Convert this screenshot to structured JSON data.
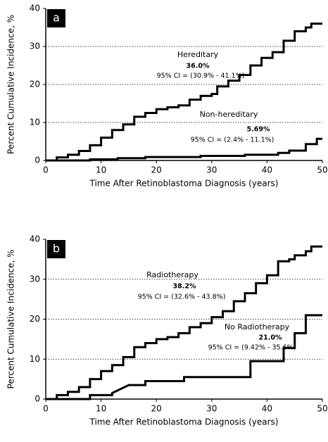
{
  "chart_data": [
    {
      "type": "line",
      "panel": "a",
      "xlabel": "Time After Retinoblastoma Diagnosis (years)",
      "ylabel": "Percent Cumulative Incidence, %",
      "xlim": [
        0,
        50
      ],
      "ylim": [
        0,
        40
      ],
      "xticks": [
        0,
        10,
        20,
        30,
        40,
        50
      ],
      "yticks": [
        0,
        10,
        20,
        30,
        40
      ],
      "grid": true,
      "series": [
        {
          "name": "Hereditary",
          "color": "#000000",
          "x": [
            0,
            2,
            2,
            4,
            4,
            6,
            6,
            8,
            8,
            10,
            10,
            12,
            12,
            14,
            14,
            16,
            16,
            18,
            18,
            20,
            20,
            22,
            22,
            24,
            24,
            26,
            26,
            28,
            28,
            30,
            30,
            31,
            31,
            33,
            33,
            35,
            35,
            37,
            37,
            39,
            39,
            41,
            41,
            43,
            43,
            45,
            45,
            47,
            47,
            48,
            48,
            50
          ],
          "values": [
            0,
            0,
            0.8,
            0.8,
            1.5,
            1.5,
            2.5,
            2.5,
            4,
            4,
            6,
            6,
            8,
            8,
            9.5,
            9.5,
            11.5,
            11.5,
            12.5,
            12.5,
            13.5,
            13.5,
            14,
            14,
            14.5,
            14.5,
            16,
            16,
            17,
            17,
            17.5,
            17.5,
            19.5,
            19.5,
            21,
            21,
            22.5,
            22.5,
            25,
            25,
            27,
            27,
            28.5,
            28.5,
            31.5,
            31.5,
            34,
            34,
            35,
            35,
            36,
            36
          ]
        },
        {
          "name": "Non-hereditary",
          "color": "#000000",
          "x": [
            0,
            8,
            8,
            13,
            13,
            18,
            18,
            28,
            28,
            36,
            36,
            42,
            42,
            44,
            44,
            47,
            47,
            49,
            49,
            50
          ],
          "values": [
            0,
            0,
            0.3,
            0.3,
            0.6,
            0.6,
            0.9,
            0.9,
            1.2,
            1.2,
            1.5,
            1.5,
            2,
            2,
            2.6,
            2.6,
            4.3,
            4.3,
            5.69,
            5.69
          ]
        }
      ],
      "annotations": [
        "Hereditary",
        "36.0%",
        "95% CI = (30.9% - 41.1%)",
        "Non-hereditary",
        "5.69%",
        "95% CI = (2.4% - 11.1%)"
      ]
    },
    {
      "type": "line",
      "panel": "b",
      "xlabel": "Time After Retinoblastoma Diagnosis (years)",
      "ylabel": "Percent Cumulative Incidence, %",
      "xlim": [
        0,
        50
      ],
      "ylim": [
        0,
        40
      ],
      "xticks": [
        0,
        10,
        20,
        30,
        40,
        50
      ],
      "yticks": [
        0,
        10,
        20,
        30,
        40
      ],
      "grid": true,
      "series": [
        {
          "name": "Radiotherapy",
          "color": "#000000",
          "x": [
            0,
            2,
            2,
            4,
            4,
            6,
            6,
            8,
            8,
            10,
            10,
            12,
            12,
            14,
            14,
            16,
            16,
            18,
            18,
            20,
            20,
            22,
            22,
            24,
            24,
            26,
            26,
            28,
            28,
            30,
            30,
            32,
            32,
            34,
            34,
            36,
            36,
            38,
            38,
            40,
            40,
            42,
            42,
            44,
            44,
            45,
            45,
            47,
            47,
            48,
            48,
            50
          ],
          "values": [
            0,
            0,
            1,
            1,
            1.8,
            1.8,
            3,
            3,
            5,
            5,
            7,
            7,
            8.5,
            8.5,
            10.5,
            10.5,
            13,
            13,
            14,
            14,
            15,
            15,
            15.5,
            15.5,
            16.5,
            16.5,
            18,
            18,
            19,
            19,
            20.5,
            20.5,
            22,
            22,
            24.5,
            24.5,
            26.5,
            26.5,
            29,
            29,
            31,
            31,
            34.5,
            34.5,
            35,
            35,
            36,
            36,
            37,
            37,
            38.2,
            38.2
          ]
        },
        {
          "name": "No Radiotherapy",
          "color": "#000000",
          "x": [
            0,
            8,
            8,
            12,
            12,
            15,
            15,
            18,
            18,
            25,
            25,
            37,
            37,
            43,
            43,
            45,
            45,
            47,
            47,
            50
          ],
          "values": [
            0,
            0,
            1,
            1,
            1.5,
            3.5,
            3.5,
            3.5,
            4.5,
            4.5,
            5.5,
            5.5,
            9.5,
            9.5,
            12.8,
            12.8,
            16.5,
            16.5,
            21,
            21
          ]
        }
      ],
      "annotations": [
        "Radiotherapy",
        "38.2%",
        "95% CI = (32.6% - 43.8%)",
        "No Radiotherapy",
        "21.0%",
        "95% CI = (9.42% - 35.6%)"
      ]
    }
  ]
}
